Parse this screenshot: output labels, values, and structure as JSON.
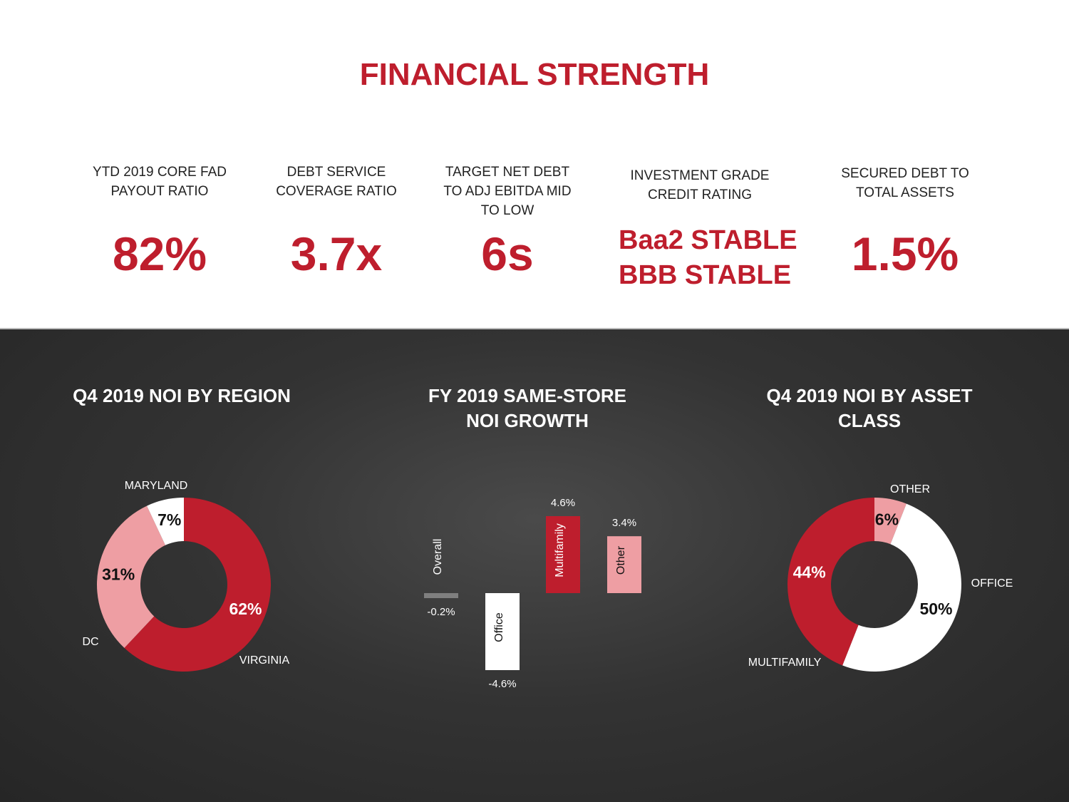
{
  "title": "FINANCIAL STRENGTH",
  "metrics": [
    {
      "label": "YTD 2019 CORE FAD PAYOUT RATIO",
      "value": "82%"
    },
    {
      "label": "DEBT SERVICE COVERAGE RATIO",
      "value": "3.7x"
    },
    {
      "label": "TARGET NET DEBT TO ADJ EBITDA MID TO LOW",
      "value": "6s"
    },
    {
      "label": "INVESTMENT GRADE CREDIT RATING",
      "value": "Baa2 STABLE\nBBB STABLE"
    },
    {
      "label": "SECURED DEBT TO TOTAL ASSETS",
      "value": "1.5%"
    }
  ],
  "chart_data": [
    {
      "type": "pie",
      "title": "Q4 2019 NOI BY REGION",
      "categories": [
        "VIRGINIA",
        "DC",
        "MARYLAND"
      ],
      "values": [
        62,
        31,
        7
      ],
      "value_labels": [
        "62%",
        "31%",
        "7%"
      ],
      "colors": [
        "#be1e2d",
        "#ee9ea3",
        "#ffffff"
      ]
    },
    {
      "type": "bar",
      "title": "FY 2019 SAME-STORE NOI GROWTH",
      "categories": [
        "Overall",
        "Office",
        "Multifamily",
        "Other"
      ],
      "values": [
        -0.2,
        -4.6,
        4.6,
        3.4
      ],
      "value_labels": [
        "-0.2%",
        "-4.6%",
        "4.6%",
        "3.4%"
      ],
      "colors": [
        "#7f7f7f",
        "#ffffff",
        "#be1e2d",
        "#ee9ea3"
      ]
    },
    {
      "type": "pie",
      "title": "Q4 2019 NOI BY ASSET CLASS",
      "categories": [
        "OTHER",
        "OFFICE",
        "MULTIFAMILY"
      ],
      "values": [
        6,
        50,
        44
      ],
      "value_labels": [
        "6%",
        "50%",
        "44%"
      ],
      "colors": [
        "#ee9ea3",
        "#ffffff",
        "#be1e2d"
      ]
    }
  ]
}
